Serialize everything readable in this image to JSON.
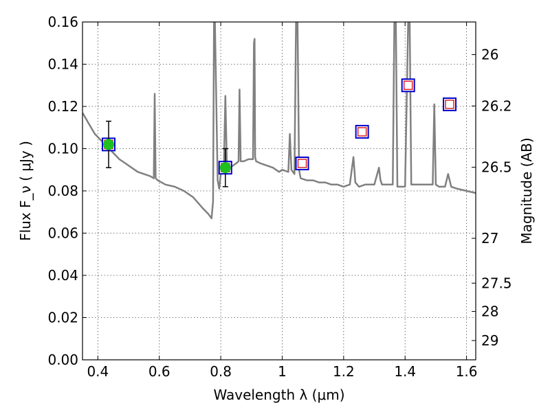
{
  "chart_data": {
    "type": "line",
    "xlabel": "Wavelength  λ (μm)",
    "ylabel": "Flux  F_ν  ( μJy )",
    "y2label": "Magnitude (AB)",
    "xlim": [
      0.35,
      1.63
    ],
    "ylim": [
      0.0,
      0.16
    ],
    "grid": true,
    "x_ticks": [
      0.4,
      0.6,
      0.8,
      1.0,
      1.2,
      1.4,
      1.6
    ],
    "x_tick_labels": [
      "0.4",
      "0.6",
      "0.8",
      "1",
      "1.2",
      "1.4",
      "1.6"
    ],
    "y_ticks": [
      0.0,
      0.02,
      0.04,
      0.06,
      0.08,
      0.1,
      0.12,
      0.14,
      0.16
    ],
    "y_tick_labels": [
      "0.00",
      "0.02",
      "0.04",
      "0.06",
      "0.08",
      "0.10",
      "0.12",
      "0.14",
      "0.16"
    ],
    "y2_ticks": [
      26,
      26.2,
      26.5,
      27,
      27.5,
      28,
      29
    ],
    "y2_tick_labels": [
      "26",
      "26.2",
      "26.5",
      "27",
      "27.5",
      "28",
      "29"
    ],
    "colors": {
      "spectrum": "#808080",
      "observed": "#1fbf1f",
      "model_outer": "#0000cc",
      "model_inner": "#dd2222",
      "errorbar": "#000000"
    },
    "spectrum": {
      "x": [
        0.35,
        0.37,
        0.39,
        0.41,
        0.43,
        0.45,
        0.47,
        0.49,
        0.51,
        0.53,
        0.55,
        0.57,
        0.582,
        0.585,
        0.588,
        0.595,
        0.62,
        0.65,
        0.68,
        0.71,
        0.74,
        0.76,
        0.77,
        0.775,
        0.778,
        0.781,
        0.79,
        0.795,
        0.8,
        0.81,
        0.815,
        0.82,
        0.823,
        0.83,
        0.84,
        0.85,
        0.858,
        0.861,
        0.865,
        0.875,
        0.89,
        0.905,
        0.908,
        0.91,
        0.912,
        0.915,
        0.93,
        0.95,
        0.97,
        0.98,
        0.99,
        1.0,
        1.02,
        1.025,
        1.03,
        1.04,
        1.045,
        1.05,
        1.055,
        1.06,
        1.08,
        1.1,
        1.12,
        1.14,
        1.16,
        1.18,
        1.2,
        1.22,
        1.232,
        1.235,
        1.238,
        1.25,
        1.27,
        1.3,
        1.315,
        1.32,
        1.325,
        1.34,
        1.36,
        1.365,
        1.368,
        1.37,
        1.375,
        1.4,
        1.41,
        1.415,
        1.42,
        1.44,
        1.46,
        1.49,
        1.495,
        1.5,
        1.51,
        1.53,
        1.54,
        1.55,
        1.57,
        1.6,
        1.63
      ],
      "y": [
        0.117,
        0.112,
        0.107,
        0.104,
        0.101,
        0.098,
        0.095,
        0.093,
        0.091,
        0.089,
        0.088,
        0.087,
        0.086,
        0.126,
        0.086,
        0.085,
        0.083,
        0.082,
        0.08,
        0.077,
        0.072,
        0.069,
        0.067,
        0.075,
        0.16,
        0.16,
        0.085,
        0.081,
        0.088,
        0.091,
        0.125,
        0.092,
        0.09,
        0.091,
        0.092,
        0.093,
        0.094,
        0.128,
        0.094,
        0.094,
        0.095,
        0.095,
        0.15,
        0.152,
        0.096,
        0.094,
        0.093,
        0.092,
        0.091,
        0.09,
        0.089,
        0.09,
        0.089,
        0.107,
        0.09,
        0.088,
        0.16,
        0.16,
        0.09,
        0.086,
        0.085,
        0.085,
        0.084,
        0.084,
        0.083,
        0.083,
        0.082,
        0.083,
        0.096,
        0.09,
        0.084,
        0.082,
        0.083,
        0.083,
        0.091,
        0.085,
        0.083,
        0.083,
        0.083,
        0.16,
        0.16,
        0.16,
        0.082,
        0.082,
        0.16,
        0.16,
        0.083,
        0.083,
        0.083,
        0.083,
        0.121,
        0.083,
        0.082,
        0.082,
        0.088,
        0.082,
        0.081,
        0.08,
        0.079
      ]
    },
    "observed_points": [
      {
        "x": 0.435,
        "y": 0.102,
        "err": 0.011
      },
      {
        "x": 0.815,
        "y": 0.091,
        "err": 0.009
      }
    ],
    "model_points": [
      {
        "x": 0.435,
        "y": 0.102
      },
      {
        "x": 0.815,
        "y": 0.091
      },
      {
        "x": 1.065,
        "y": 0.093
      },
      {
        "x": 1.26,
        "y": 0.108
      },
      {
        "x": 1.41,
        "y": 0.13
      },
      {
        "x": 1.545,
        "y": 0.121
      }
    ]
  }
}
